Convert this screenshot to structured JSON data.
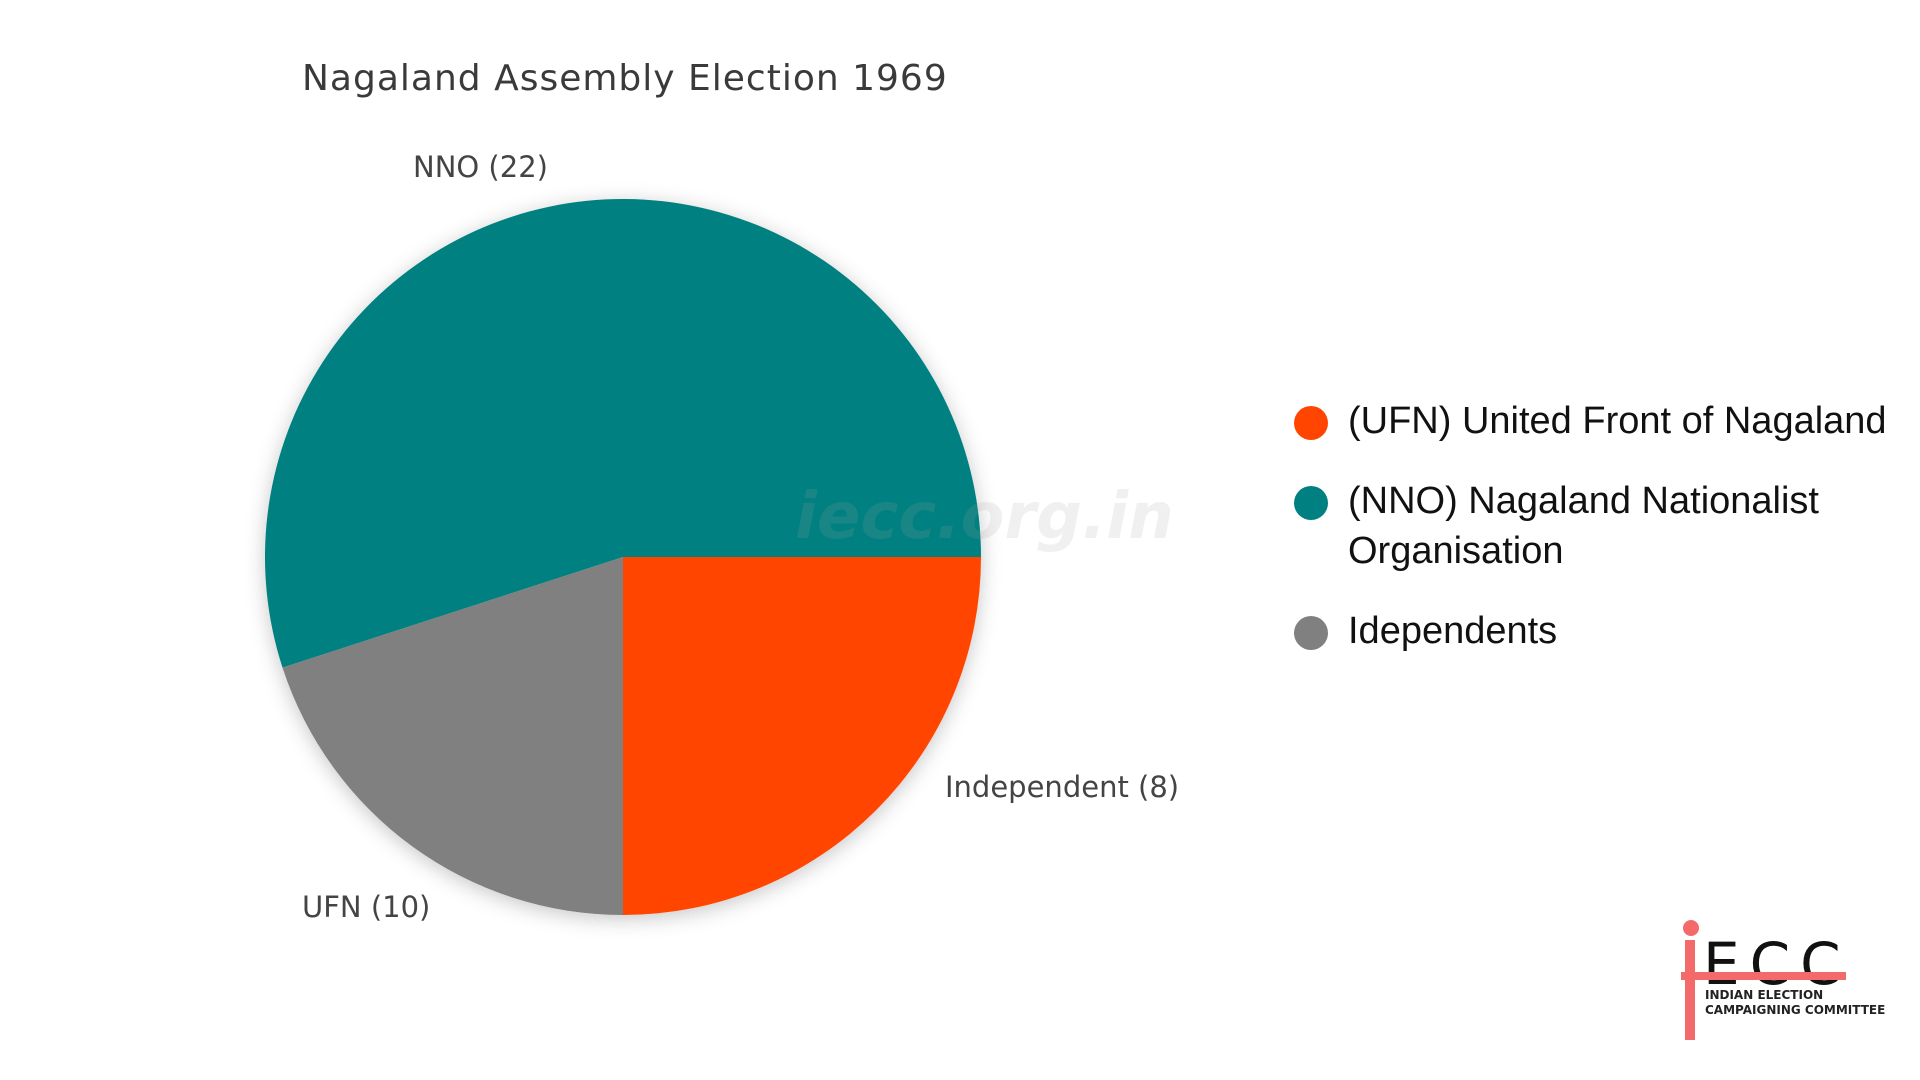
{
  "chart_data": {
    "type": "pie",
    "title": "Nagaland Assembly Election 1969",
    "slices": [
      {
        "name": "NNO",
        "value": 22,
        "label": "NNO (22)",
        "color": "#008080"
      },
      {
        "name": "Independent",
        "value": 8,
        "label": "Independent (8)",
        "color": "#808080"
      },
      {
        "name": "UFN",
        "value": 10,
        "label": "UFN (10)",
        "color": "#FF4500"
      }
    ],
    "legend_placement": "right",
    "legend": [
      {
        "label": "(UFN) United Front of Nagaland",
        "color": "#FF4500"
      },
      {
        "label": "(NNO) Nagaland Nationalist Organisation",
        "color": "#008080"
      },
      {
        "label": "Idependents",
        "color": "#808080"
      }
    ]
  },
  "watermark": "iecc.org.in",
  "logo": {
    "mark": "ECC",
    "line1": "INDIAN ELECTION",
    "line2": "CAMPAIGNING COMMITTEE"
  }
}
